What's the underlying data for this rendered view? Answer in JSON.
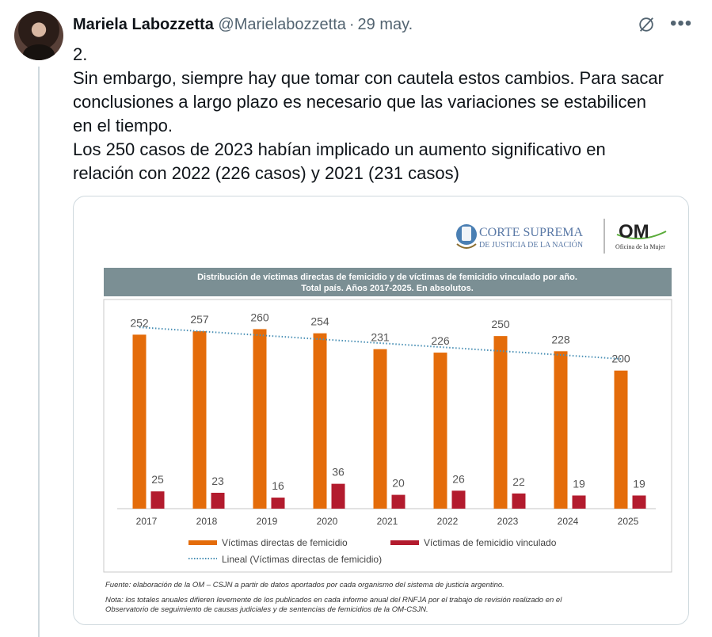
{
  "tweet": {
    "author_name": "Mariela Labozzetta",
    "handle": "@Marielabozzetta",
    "separator": "·",
    "date": "29 may.",
    "menu_icon": "more-horizontal-icon",
    "grok_icon": "grok-icon",
    "text_lines": [
      "2.",
      "Sin embargo, siempre hay que tomar con cautela estos cambios. Para sacar",
      "conclusiones a largo plazo es necesario que las variaciones se estabilicen",
      "en el tiempo.",
      "Los 250 casos de 2023 habían implicado un aumento significativo en",
      "relación con 2022 (226 casos) y 2021 (231 casos)"
    ]
  },
  "media": {
    "logo": {
      "court_line1": "CORTE SUPREMA",
      "court_line2": "DE JUSTICIA DE LA NACIÓN",
      "om_mark": "OM",
      "om_subtitle": "Oficina de la Mujer"
    },
    "source_note": "Fuente: elaboración de la OM – CSJN a partir de datos aportados por cada organismo del sistema de justicia argentino.",
    "note_line1": "Nota: los totales anuales difieren levemente de los publicados en cada informe anual del RNFJA por el trabajo de revisión realizado en el",
    "note_line2": "Observatorio de seguimiento de causas judiciales y de sentencias de femicidios de la OM-CSJN."
  },
  "chart_data": {
    "type": "bar",
    "title": "Distribución de víctimas directas de femicidio y de víctimas de femicidio vinculado por año.",
    "subtitle": "Total país. Años 2017-2025. En absolutos.",
    "categories": [
      "2017",
      "2018",
      "2019",
      "2020",
      "2021",
      "2022",
      "2023",
      "2024",
      "2025"
    ],
    "series": [
      {
        "name": "Víctimas directas de femicidio",
        "values": [
          252,
          257,
          260,
          254,
          231,
          226,
          250,
          228,
          200
        ],
        "color": "#e46c0a"
      },
      {
        "name": "Víctimas de femicidio vinculado",
        "values": [
          25,
          23,
          16,
          36,
          20,
          26,
          22,
          19,
          19
        ],
        "color": "#b31b2e"
      }
    ],
    "trendline": {
      "name": "Lineal (Víctimas directas de femicidio)",
      "style": "dotted",
      "color": "#4a90b5"
    },
    "ylim": [
      0,
      280
    ],
    "grid": false,
    "legend_position": "bottom"
  }
}
